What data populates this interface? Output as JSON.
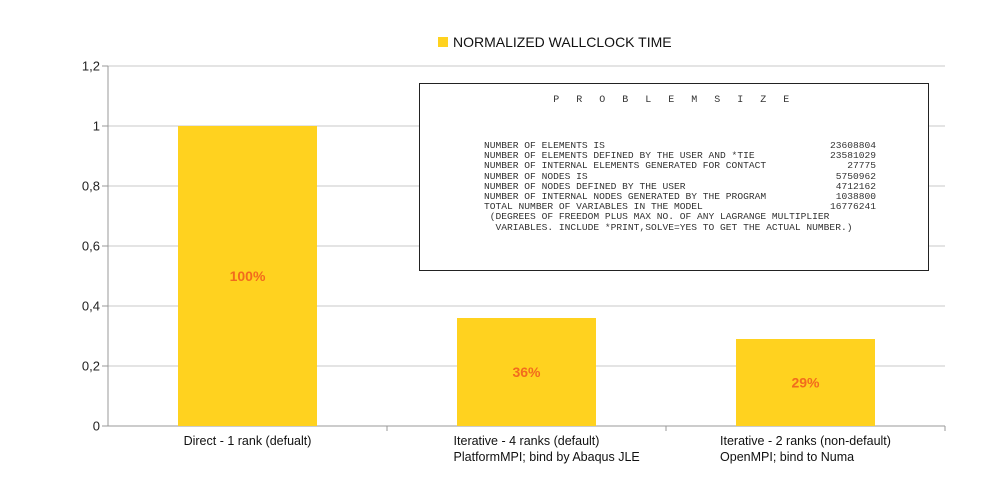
{
  "chart_data": {
    "type": "bar",
    "title": "",
    "legend": {
      "label": "NORMALIZED  WALLCLOCK TIME",
      "position": "top-center",
      "color": "#FFD21F"
    },
    "categories": [
      [
        "Direct - 1 rank (defualt)"
      ],
      [
        "Iterative - 4 ranks (default)",
        "PlatformMPI; bind by Abaqus JLE"
      ],
      [
        "Iterative - 2 ranks (non-default)",
        "OpenMPI; bind to Numa"
      ]
    ],
    "series": [
      {
        "name": "NORMALIZED  WALLCLOCK TIME",
        "values": [
          1.0,
          0.36,
          0.29
        ],
        "color": "#FFD21F"
      }
    ],
    "data_labels": [
      "100%",
      "36%",
      "29%"
    ],
    "data_label_color": "#F26B1D",
    "y_ticks": [
      "0",
      "0,2",
      "0,4",
      "0,6",
      "0,8",
      "1",
      "1,2"
    ],
    "ylim": [
      0,
      1.2
    ],
    "grid": true,
    "xlabel": "",
    "ylabel": ""
  },
  "problem_size": {
    "title": "P R O B L E M   S I Z E",
    "rows": [
      {
        "label": "NUMBER OF ELEMENTS IS",
        "value": "23608804"
      },
      {
        "label": "NUMBER OF ELEMENTS DEFINED BY THE USER AND *TIE",
        "value": "23581029"
      },
      {
        "label": "NUMBER OF INTERNAL ELEMENTS GENERATED FOR CONTACT",
        "value": "27775"
      },
      {
        "label": "NUMBER OF NODES IS",
        "value": "5750962"
      },
      {
        "label": "NUMBER OF NODES DEFINED BY THE USER",
        "value": "4712162"
      },
      {
        "label": "NUMBER OF INTERNAL NODES GENERATED BY THE PROGRAM",
        "value": "1038800"
      },
      {
        "label": "TOTAL NUMBER OF VARIABLES IN THE MODEL",
        "value": "16776241"
      }
    ],
    "notes": [
      " (DEGREES OF FREEDOM PLUS MAX NO. OF ANY LAGRANGE MULTIPLIER",
      "  VARIABLES. INCLUDE *PRINT,SOLVE=YES TO GET THE ACTUAL NUMBER.)"
    ]
  }
}
